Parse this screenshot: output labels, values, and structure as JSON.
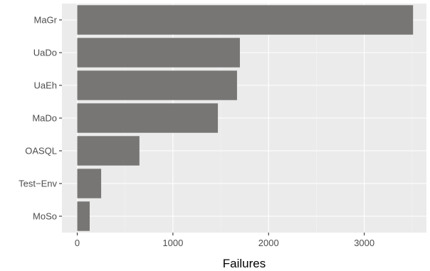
{
  "chart_data": {
    "type": "bar",
    "orientation": "horizontal",
    "categories": [
      "MaGr",
      "UaDo",
      "UaEh",
      "MaDo",
      "OASQL",
      "Test−Env",
      "MoSo"
    ],
    "values": [
      3510,
      1700,
      1670,
      1470,
      650,
      250,
      130
    ],
    "xlabel": "Failures",
    "ylabel": "",
    "xlim": [
      -160,
      3650
    ],
    "x_ticks": [
      0,
      1000,
      2000,
      3000
    ],
    "x_tick_labels": [
      "0",
      "1000",
      "2000",
      "3000"
    ],
    "grid": true,
    "legend": "none",
    "colors": {
      "bar": "#777675",
      "panel_background": "#ebebeb",
      "grid_major": "#ffffff",
      "grid_minor": "#f4f4f4",
      "tick_text": "#4d4d4d",
      "axis_title": "#000000"
    }
  }
}
